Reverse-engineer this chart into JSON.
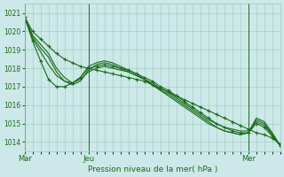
{
  "bg_color": "#cce8e8",
  "grid_color": "#99ccbb",
  "line_color": "#1a6b1a",
  "axis_label": "Pression niveau de la mer( hPa )",
  "ylim": [
    1013.5,
    1021.5
  ],
  "yticks": [
    1014,
    1015,
    1016,
    1017,
    1018,
    1019,
    1020,
    1021
  ],
  "x_labels": [
    "Mar",
    "Jeu",
    "Mer"
  ],
  "x_ticks_hours": [
    0,
    48,
    168
  ],
  "total_hours": 192,
  "vline_hours": [
    0,
    48,
    168
  ],
  "series": [
    {
      "hours": [
        0,
        6,
        12,
        18,
        24,
        30,
        36,
        42,
        48,
        54,
        60,
        66,
        72,
        78,
        84,
        90,
        96,
        102,
        108,
        114,
        120,
        126,
        132,
        138,
        144,
        150,
        156,
        162,
        168,
        174,
        180,
        186,
        192
      ],
      "values": [
        1020.8,
        1020.0,
        1019.6,
        1019.2,
        1018.8,
        1018.5,
        1018.3,
        1018.1,
        1018.0,
        1017.9,
        1017.8,
        1017.7,
        1017.6,
        1017.5,
        1017.4,
        1017.3,
        1017.1,
        1016.9,
        1016.7,
        1016.5,
        1016.3,
        1016.1,
        1015.9,
        1015.7,
        1015.5,
        1015.3,
        1015.1,
        1014.9,
        1014.7,
        1014.5,
        1014.4,
        1014.2,
        1013.9
      ],
      "marker": true
    },
    {
      "hours": [
        0,
        6,
        12,
        18,
        24,
        30,
        36,
        42,
        48,
        54,
        60,
        66,
        72,
        78,
        84,
        90,
        96,
        102,
        108,
        114,
        120,
        126,
        132,
        138,
        144,
        150,
        156,
        162,
        168,
        174,
        180,
        186,
        192
      ],
      "values": [
        1020.8,
        1019.5,
        1018.4,
        1017.4,
        1017.0,
        1017.0,
        1017.2,
        1017.5,
        1018.0,
        1018.1,
        1018.2,
        1018.1,
        1018.0,
        1017.9,
        1017.7,
        1017.5,
        1017.3,
        1017.0,
        1016.8,
        1016.5,
        1016.2,
        1015.9,
        1015.6,
        1015.3,
        1015.0,
        1014.8,
        1014.6,
        1014.5,
        1014.5,
        1015.0,
        1014.8,
        1014.3,
        1013.8
      ],
      "marker": true
    },
    {
      "hours": [
        0,
        6,
        12,
        18,
        24,
        30,
        36,
        42,
        48,
        54,
        60,
        66,
        72,
        78,
        84,
        90,
        96,
        102,
        108,
        114,
        120,
        126,
        132,
        138,
        144,
        150,
        156,
        162,
        168,
        174,
        180,
        186,
        192
      ],
      "values": [
        1020.8,
        1019.6,
        1018.9,
        1018.2,
        1017.6,
        1017.3,
        1017.2,
        1017.4,
        1017.8,
        1018.0,
        1018.1,
        1018.0,
        1017.9,
        1017.8,
        1017.6,
        1017.4,
        1017.2,
        1016.9,
        1016.7,
        1016.4,
        1016.1,
        1015.8,
        1015.5,
        1015.2,
        1015.0,
        1014.8,
        1014.7,
        1014.6,
        1014.6,
        1015.1,
        1014.9,
        1014.4,
        1013.8
      ],
      "marker": false
    },
    {
      "hours": [
        0,
        6,
        12,
        18,
        24,
        30,
        36,
        42,
        48,
        54,
        60,
        66,
        72,
        78,
        84,
        90,
        96,
        102,
        108,
        114,
        120,
        126,
        132,
        138,
        144,
        150,
        156,
        162,
        168,
        174,
        180,
        186,
        192
      ],
      "values": [
        1020.8,
        1019.7,
        1019.1,
        1018.6,
        1017.8,
        1017.3,
        1017.1,
        1017.3,
        1017.9,
        1018.2,
        1018.3,
        1018.2,
        1018.0,
        1017.8,
        1017.6,
        1017.4,
        1017.1,
        1016.8,
        1016.6,
        1016.3,
        1016.0,
        1015.7,
        1015.4,
        1015.1,
        1014.8,
        1014.6,
        1014.5,
        1014.4,
        1014.5,
        1015.2,
        1015.0,
        1014.4,
        1013.8
      ],
      "marker": false
    },
    {
      "hours": [
        0,
        6,
        12,
        18,
        24,
        30,
        36,
        42,
        48,
        54,
        60,
        66,
        72,
        78,
        84,
        90,
        96,
        102,
        108,
        114,
        120,
        126,
        132,
        138,
        144,
        150,
        156,
        162,
        168,
        174,
        180,
        186,
        192
      ],
      "values": [
        1020.8,
        1019.8,
        1019.3,
        1018.8,
        1018.0,
        1017.5,
        1017.2,
        1017.5,
        1018.1,
        1018.3,
        1018.4,
        1018.3,
        1018.1,
        1017.9,
        1017.7,
        1017.4,
        1017.1,
        1016.8,
        1016.5,
        1016.2,
        1015.9,
        1015.6,
        1015.3,
        1015.0,
        1014.8,
        1014.6,
        1014.5,
        1014.4,
        1014.5,
        1015.3,
        1015.1,
        1014.5,
        1013.8
      ],
      "marker": false
    }
  ]
}
